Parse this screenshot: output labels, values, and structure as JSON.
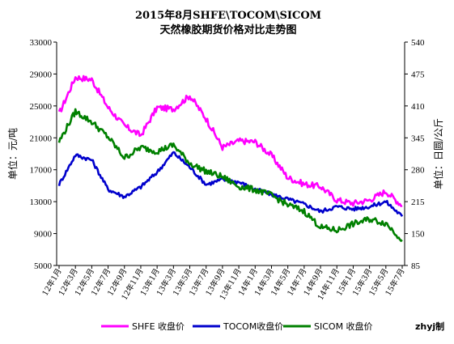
{
  "chart_data": {
    "type": "line",
    "title": "2015年8月SHFE\\TOCOM\\SICOM",
    "subtitle": "天然橡胶期货价格对比走势图",
    "ylabel": "单位：元/吨",
    "y2label": "单位：日圆/公斤",
    "ylim": [
      5000,
      33000
    ],
    "y2lim": [
      85,
      540
    ],
    "yticks": [
      5000,
      9000,
      13000,
      17000,
      21000,
      25000,
      29000,
      33000
    ],
    "y2ticks": [
      85,
      150,
      215,
      280,
      345,
      410,
      475,
      540
    ],
    "x": [
      "12年1月",
      "12年3月",
      "12年5月",
      "12年7月",
      "12年9月",
      "12年11月",
      "13年1月",
      "13年3月",
      "13年5月",
      "13年7月",
      "13年9月",
      "13年11月",
      "14年1月",
      "14年3月",
      "14年5月",
      "14年7月",
      "14年9月",
      "14年11月",
      "15年1月",
      "15年3月",
      "15年5月",
      "15年7月"
    ],
    "grid": false,
    "legend_position": "bottom",
    "series": [
      {
        "name": "SHFE 收盘价",
        "axis": "left",
        "color": "#ff00ff",
        "values": [
          24000,
          28600,
          28300,
          24800,
          22500,
          21300,
          24800,
          24600,
          26300,
          23400,
          19800,
          20600,
          20500,
          18800,
          16000,
          15200,
          14900,
          13200,
          12800,
          13200,
          14300,
          12500
        ]
      },
      {
        "name": "TOCOM收盘价",
        "axis": "right",
        "color": "#0000cc",
        "values": [
          250,
          310,
          300,
          240,
          225,
          245,
          275,
          315,
          285,
          250,
          260,
          255,
          240,
          230,
          220,
          210,
          195,
          205,
          200,
          205,
          215,
          185
        ]
      },
      {
        "name": "SICOM 收盘价",
        "axis": "left",
        "color": "#008000",
        "values": [
          20500,
          24300,
          23000,
          21100,
          18500,
          19800,
          19300,
          20100,
          17800,
          16800,
          16100,
          14900,
          14500,
          13800,
          12600,
          11800,
          9800,
          9400,
          10200,
          10800,
          10300,
          8200
        ]
      }
    ],
    "annotation": "zhyj制"
  }
}
